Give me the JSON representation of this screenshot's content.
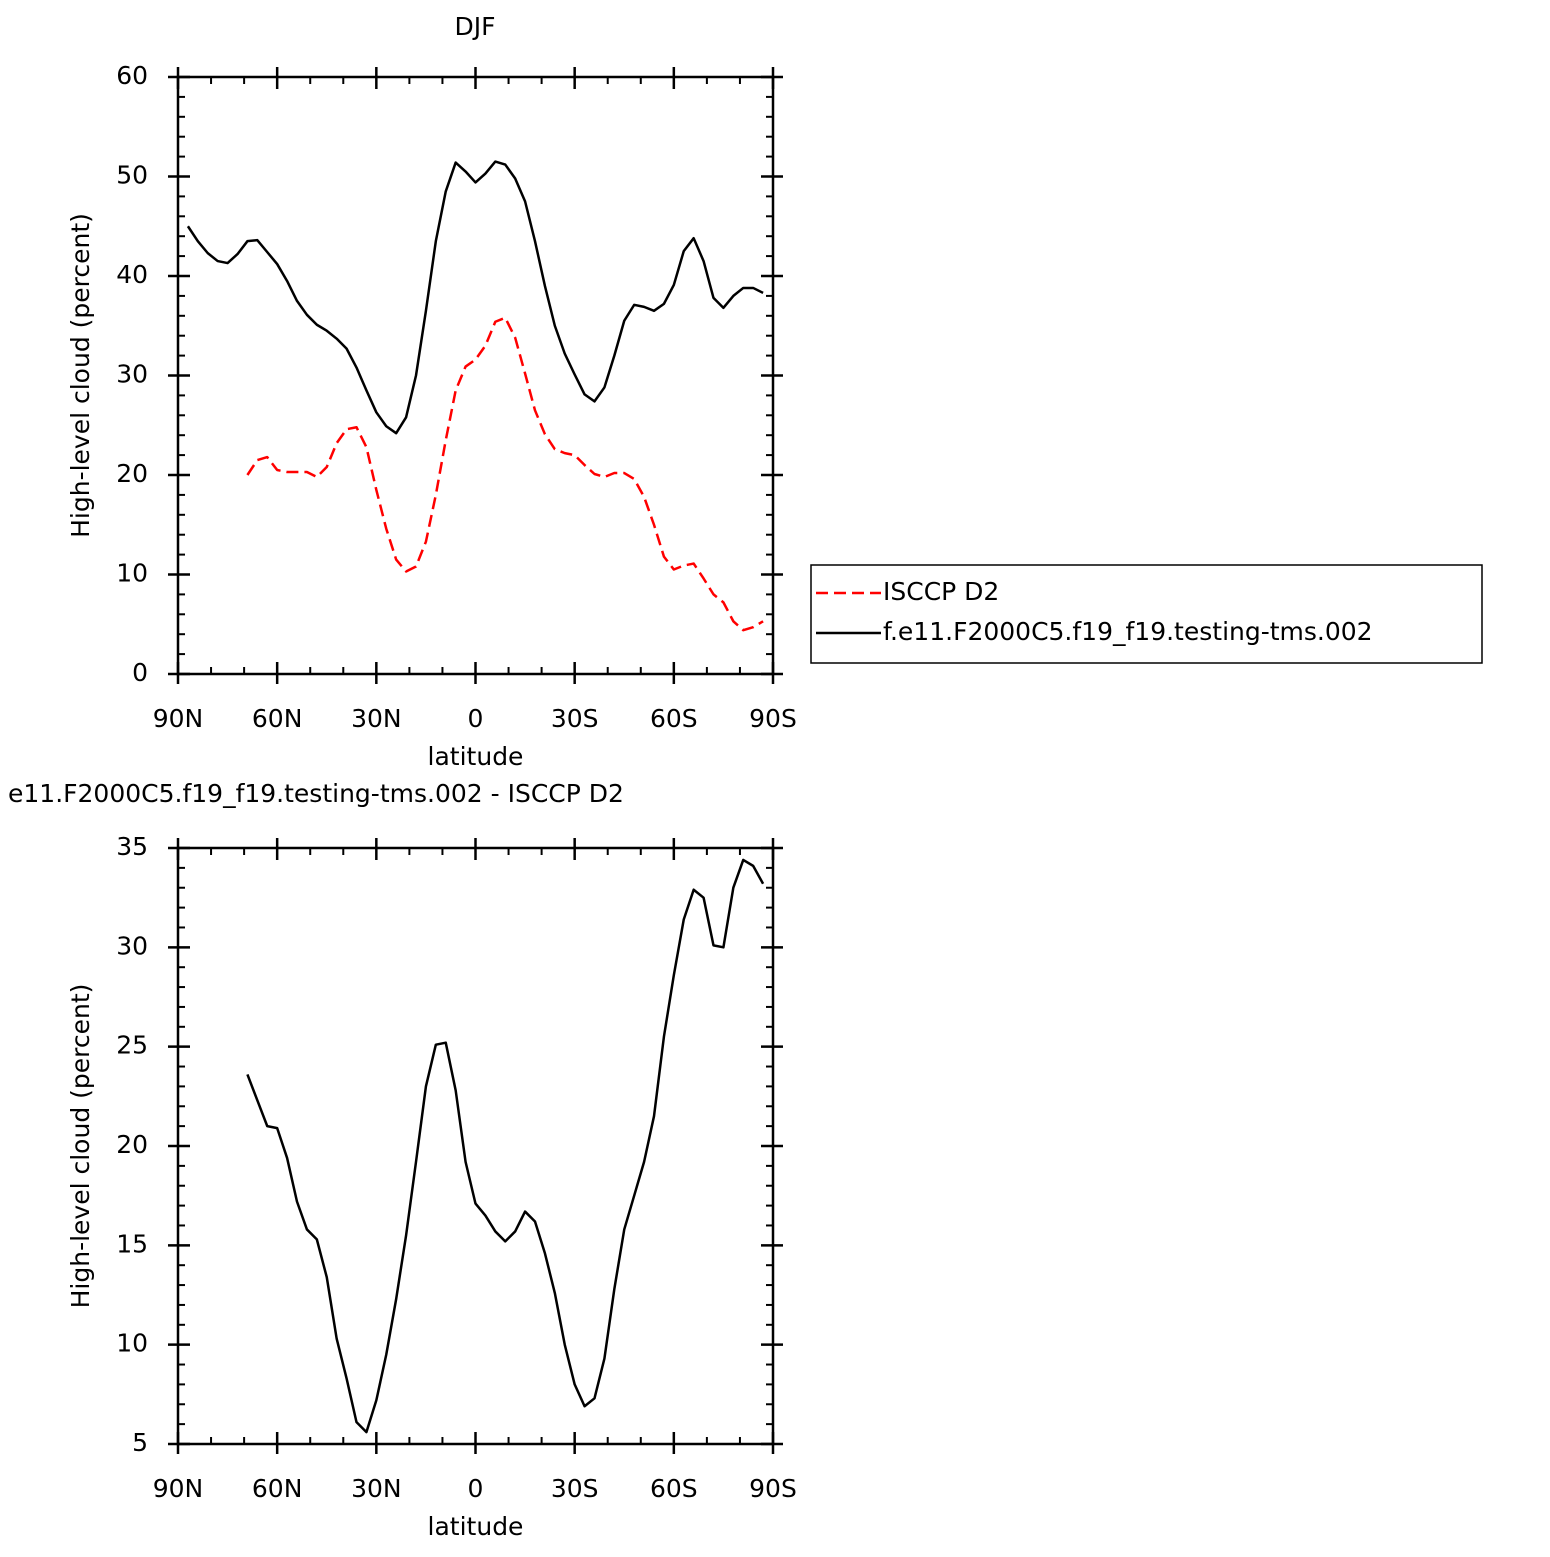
{
  "chart_data": [
    {
      "type": "line",
      "title": "DJF",
      "xlabel": "latitude",
      "ylabel": "High-level cloud (percent)",
      "x": [
        87,
        84,
        81,
        78,
        75,
        72,
        69,
        66,
        63,
        60,
        57,
        54,
        51,
        48,
        45,
        42,
        39,
        36,
        33,
        30,
        27,
        24,
        21,
        18,
        15,
        12,
        9,
        6,
        3,
        0,
        -3,
        -6,
        -9,
        -12,
        -15,
        -18,
        -21,
        -24,
        -27,
        -30,
        -33,
        -36,
        -39,
        -42,
        -45,
        -48,
        -51,
        -54,
        -57,
        -60,
        -63,
        -66,
        -69,
        -72,
        -75,
        -78,
        -81,
        -84,
        -87
      ],
      "series": [
        {
          "name": "ISCCP D2",
          "color": "#ff0000",
          "line_style": "dashed",
          "values": [
            null,
            null,
            null,
            null,
            null,
            null,
            20.0,
            21.5,
            21.8,
            20.5,
            20.3,
            20.3,
            20.3,
            19.8,
            20.8,
            23.2,
            24.6,
            24.8,
            22.8,
            18.5,
            14.6,
            11.5,
            10.3,
            10.8,
            13.3,
            18,
            23.5,
            28.5,
            30.9,
            31.6,
            33,
            35.4,
            35.8,
            33.8,
            30.2,
            26.5,
            24.1,
            22.6,
            22.2,
            22.0,
            21.0,
            20.1,
            19.8,
            20.2,
            20.2,
            19.6,
            17.8,
            15,
            11.8,
            10.5,
            10.9,
            11.1,
            9.6,
            8.0,
            7.2,
            5.3,
            4.4,
            4.7,
            5.3
          ]
        },
        {
          "name": "f.e11.F2000C5.f19_f19.testing-tms.002",
          "color": "#000000",
          "line_style": "solid",
          "values": [
            45.0,
            43.5,
            42.3,
            41.5,
            41.3,
            42.2,
            43.5,
            43.6,
            42.4,
            41.2,
            39.5,
            37.5,
            36.1,
            35.1,
            34.5,
            33.7,
            32.7,
            30.8,
            28.5,
            26.3,
            24.9,
            24.2,
            25.8,
            30.0,
            36.5,
            43.5,
            48.5,
            51.4,
            50.5,
            49.4,
            50.3,
            51.5,
            51.2,
            49.8,
            47.5,
            43.5,
            39,
            35,
            32.2,
            30.1,
            28.1,
            27.4,
            28.8,
            32,
            35.5,
            37.1,
            36.9,
            36.5,
            37.2,
            39.1,
            42.5,
            43.8,
            41.5,
            37.8,
            36.8,
            38.0,
            38.8,
            38.8,
            38.3
          ]
        }
      ],
      "xlim": [
        90,
        -90
      ],
      "xticks": [
        {
          "value": 90,
          "label": "90N"
        },
        {
          "value": 60,
          "label": "60N"
        },
        {
          "value": 30,
          "label": "30N"
        },
        0,
        {
          "value": -30,
          "label": "30S"
        },
        {
          "value": -60,
          "label": "60S"
        },
        {
          "value": -90,
          "label": "90S"
        }
      ],
      "ylim": [
        0,
        60
      ],
      "yticks": [
        0,
        10,
        20,
        30,
        40,
        50,
        60
      ],
      "grid": false
    },
    {
      "type": "line",
      "title": "e11.F2000C5.f19_f19.testing-tms.002 - ISCCP D2",
      "xlabel": "latitude",
      "ylabel": "High-level cloud (percent)",
      "x": [
        69,
        66,
        63,
        60,
        57,
        54,
        51,
        48,
        45,
        42,
        39,
        36,
        33,
        30,
        27,
        24,
        21,
        18,
        15,
        12,
        9,
        6,
        3,
        0,
        -3,
        -6,
        -9,
        -12,
        -15,
        -18,
        -21,
        -24,
        -27,
        -30,
        -33,
        -36,
        -39,
        -42,
        -45,
        -48,
        -51,
        -54,
        -57,
        -60,
        -63,
        -66,
        -69,
        -72,
        -75,
        -78,
        -81,
        -84,
        -87
      ],
      "series": [
        {
          "color": "#000000",
          "line_style": "solid",
          "values": [
            23.6,
            22.3,
            21.0,
            20.9,
            19.4,
            17.2,
            15.8,
            15.3,
            13.4,
            10.3,
            8.3,
            6.1,
            5.6,
            7.2,
            9.5,
            12.3,
            15.5,
            19.2,
            23,
            25.1,
            25.2,
            22.8,
            19.2,
            17.1,
            16.5,
            15.7,
            15.2,
            15.7,
            16.7,
            16.2,
            14.6,
            12.6,
            10.0,
            8.0,
            6.9,
            7.3,
            9.3,
            12.8,
            15.8,
            17.5,
            19.2,
            21.5,
            25.5,
            28.6,
            31.4,
            32.9,
            32.5,
            30.1,
            30.0,
            33.0,
            34.4,
            34.1,
            33.2
          ]
        }
      ],
      "xlim": [
        90,
        -90
      ],
      "xticks": [
        {
          "value": 90,
          "label": "90N"
        },
        {
          "value": 60,
          "label": "60N"
        },
        {
          "value": 30,
          "label": "30N"
        },
        0,
        {
          "value": -30,
          "label": "30S"
        },
        {
          "value": -60,
          "label": "60S"
        },
        {
          "value": -90,
          "label": "90S"
        }
      ],
      "ylim": [
        5,
        35
      ],
      "yticks": [
        5,
        10,
        15,
        20,
        25,
        30,
        35
      ],
      "grid": false
    }
  ]
}
